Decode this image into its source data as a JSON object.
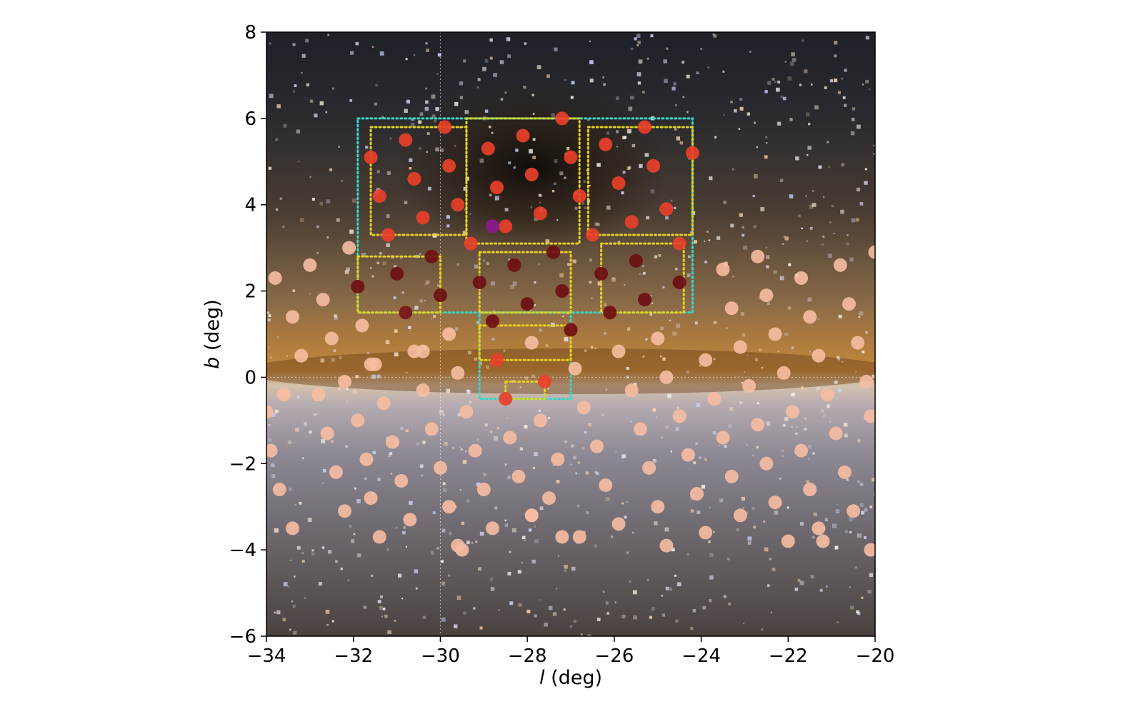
{
  "chart_data": {
    "type": "scatter",
    "xlabel": {
      "var": "l",
      "unit": " (deg)"
    },
    "ylabel": {
      "var": "b",
      "unit": " (deg)"
    },
    "xlim": [
      -34,
      -20
    ],
    "ylim": [
      -6,
      8
    ],
    "xticks": [
      -34,
      -32,
      -30,
      -28,
      -26,
      -24,
      -22,
      -20
    ],
    "yticks": [
      -6,
      -4,
      -2,
      0,
      2,
      4,
      6,
      8
    ],
    "xtick_labels": [
      "−34",
      "−32",
      "−30",
      "−28",
      "−26",
      "−24",
      "−22",
      "−20"
    ],
    "ytick_labels": [
      "−6",
      "−4",
      "−2",
      "0",
      "2",
      "4",
      "6",
      "8"
    ],
    "background": "Milky Way optical image, dark dust lane across b ≈ 0 with bright orange band, dark nebula near l ≈ -28, b ≈ 4.5",
    "colors": {
      "faint_points": "#f7bca2",
      "red_points": "#e8402a",
      "dark_points": "#6e0f12",
      "purple_point": "#8a1a8f",
      "cyan_regions": "#39d6c8",
      "yellow_regions": "#e6d21c",
      "reference_lines": "#ffffff"
    },
    "reference_lines": {
      "x": -30,
      "y": 0
    },
    "series": [
      {
        "color": "#f7bca2",
        "points": [
          [
            -33.8,
            2.3
          ],
          [
            -33.4,
            1.4
          ],
          [
            -33.2,
            0.5
          ],
          [
            -32.8,
            -0.4
          ],
          [
            -32.6,
            -1.3
          ],
          [
            -32.4,
            -2.2
          ],
          [
            -32.2,
            -3.1
          ],
          [
            -33.0,
            2.6
          ],
          [
            -32.7,
            1.8
          ],
          [
            -32.5,
            0.9
          ],
          [
            -32.2,
            -0.1
          ],
          [
            -31.9,
            -1.0
          ],
          [
            -31.7,
            -1.9
          ],
          [
            -31.6,
            -2.8
          ],
          [
            -31.4,
            -3.7
          ],
          [
            -32.1,
            3.0
          ],
          [
            -31.8,
            1.2
          ],
          [
            -31.5,
            0.3
          ],
          [
            -31.3,
            -0.6
          ],
          [
            -31.1,
            -1.5
          ],
          [
            -30.9,
            -2.4
          ],
          [
            -30.7,
            -3.3
          ],
          [
            -30.8,
            1.5
          ],
          [
            -30.6,
            0.6
          ],
          [
            -30.4,
            -0.3
          ],
          [
            -30.2,
            -1.2
          ],
          [
            -30.0,
            -2.1
          ],
          [
            -29.8,
            -3.0
          ],
          [
            -29.6,
            -3.9
          ],
          [
            -29.8,
            1.0
          ],
          [
            -29.6,
            0.1
          ],
          [
            -29.4,
            -0.8
          ],
          [
            -29.2,
            -1.7
          ],
          [
            -29.0,
            -2.6
          ],
          [
            -28.8,
            -3.5
          ],
          [
            -28.2,
            -2.3
          ],
          [
            -28.4,
            -1.4
          ],
          [
            -27.9,
            0.8
          ],
          [
            -27.7,
            -1.0
          ],
          [
            -27.9,
            -3.2
          ],
          [
            -27.5,
            -2.8
          ],
          [
            -27.3,
            -1.9
          ],
          [
            -27.2,
            -3.7
          ],
          [
            -26.9,
            0.2
          ],
          [
            -26.7,
            -0.7
          ],
          [
            -26.4,
            -1.6
          ],
          [
            -26.2,
            -2.5
          ],
          [
            -25.9,
            -3.4
          ],
          [
            -25.9,
            0.6
          ],
          [
            -25.6,
            -0.3
          ],
          [
            -25.4,
            -1.2
          ],
          [
            -25.2,
            -2.1
          ],
          [
            -25.0,
            -3.0
          ],
          [
            -24.8,
            -3.9
          ],
          [
            -25.0,
            0.9
          ],
          [
            -24.8,
            0.0
          ],
          [
            -24.5,
            -0.9
          ],
          [
            -24.3,
            -1.8
          ],
          [
            -24.1,
            -2.7
          ],
          [
            -23.9,
            -3.6
          ],
          [
            -23.9,
            0.4
          ],
          [
            -23.7,
            -0.5
          ],
          [
            -23.5,
            -1.4
          ],
          [
            -23.3,
            -2.3
          ],
          [
            -23.1,
            -3.2
          ],
          [
            -23.5,
            2.5
          ],
          [
            -23.3,
            1.6
          ],
          [
            -23.1,
            0.7
          ],
          [
            -22.9,
            -0.2
          ],
          [
            -22.7,
            -1.1
          ],
          [
            -22.5,
            -2.0
          ],
          [
            -22.3,
            -2.9
          ],
          [
            -22.7,
            2.8
          ],
          [
            -22.5,
            1.9
          ],
          [
            -22.3,
            1.0
          ],
          [
            -22.1,
            0.1
          ],
          [
            -21.9,
            -0.8
          ],
          [
            -21.7,
            -1.7
          ],
          [
            -21.5,
            -2.6
          ],
          [
            -21.3,
            -3.5
          ],
          [
            -21.7,
            2.3
          ],
          [
            -21.5,
            1.4
          ],
          [
            -21.3,
            0.5
          ],
          [
            -21.1,
            -0.4
          ],
          [
            -20.9,
            -1.3
          ],
          [
            -20.7,
            -2.2
          ],
          [
            -20.5,
            -3.1
          ],
          [
            -20.8,
            2.6
          ],
          [
            -20.6,
            1.7
          ],
          [
            -20.4,
            0.8
          ],
          [
            -20.2,
            -0.1
          ],
          [
            -20.1,
            -0.9
          ],
          [
            -20.1,
            -4.0
          ],
          [
            -20.0,
            2.9
          ],
          [
            -21.2,
            -3.8
          ],
          [
            -22.0,
            -3.8
          ],
          [
            -26.8,
            -3.7
          ],
          [
            -29.5,
            -4.0
          ],
          [
            -33.7,
            -2.6
          ],
          [
            -33.4,
            -3.5
          ],
          [
            -34.0,
            -0.8
          ],
          [
            -33.9,
            -1.7
          ],
          [
            -33.6,
            -0.4
          ],
          [
            -31.6,
            0.3
          ],
          [
            -30.4,
            0.6
          ],
          [
            -27.9,
            -3.2
          ]
        ]
      },
      {
        "color": "#e8402a",
        "points": [
          [
            -31.6,
            5.1
          ],
          [
            -30.8,
            5.5
          ],
          [
            -29.9,
            5.8
          ],
          [
            -31.4,
            4.2
          ],
          [
            -30.6,
            4.6
          ],
          [
            -29.8,
            4.9
          ],
          [
            -30.4,
            3.7
          ],
          [
            -29.6,
            4.0
          ],
          [
            -31.2,
            3.3
          ],
          [
            -29.3,
            3.1
          ],
          [
            -28.9,
            5.3
          ],
          [
            -28.1,
            5.6
          ],
          [
            -27.2,
            6.0
          ],
          [
            -28.7,
            4.4
          ],
          [
            -27.9,
            4.7
          ],
          [
            -27.0,
            5.1
          ],
          [
            -28.5,
            3.5
          ],
          [
            -27.7,
            3.8
          ],
          [
            -26.8,
            4.2
          ],
          [
            -26.5,
            3.3
          ],
          [
            -26.2,
            5.4
          ],
          [
            -25.3,
            5.8
          ],
          [
            -24.2,
            5.2
          ],
          [
            -25.9,
            4.5
          ],
          [
            -25.1,
            4.9
          ],
          [
            -24.8,
            3.9
          ],
          [
            -25.6,
            3.6
          ],
          [
            -24.5,
            3.1
          ],
          [
            -28.7,
            0.4
          ],
          [
            -27.6,
            -0.1
          ],
          [
            -28.5,
            -0.5
          ]
        ]
      },
      {
        "color": "#6e0f12",
        "points": [
          [
            -31.9,
            2.1
          ],
          [
            -31.0,
            2.4
          ],
          [
            -30.2,
            2.8
          ],
          [
            -30.0,
            1.9
          ],
          [
            -30.8,
            1.5
          ],
          [
            -29.1,
            2.2
          ],
          [
            -28.3,
            2.6
          ],
          [
            -27.4,
            2.9
          ],
          [
            -28.8,
            1.3
          ],
          [
            -28.0,
            1.7
          ],
          [
            -27.2,
            2.0
          ],
          [
            -27.0,
            1.1
          ],
          [
            -26.3,
            2.4
          ],
          [
            -25.5,
            2.7
          ],
          [
            -24.5,
            2.2
          ],
          [
            -25.3,
            1.8
          ],
          [
            -26.1,
            1.5
          ]
        ]
      },
      {
        "color": "#8a1a8f",
        "points": [
          [
            -28.8,
            3.5
          ]
        ]
      }
    ],
    "regions": {
      "cyan": [
        {
          "l": [
            -31.9,
            -24.2
          ],
          "b": [
            1.5,
            6.0
          ]
        },
        {
          "l": [
            -29.1,
            -27.0
          ],
          "b": [
            -0.5,
            1.5
          ]
        }
      ],
      "yellow": [
        {
          "l": [
            -31.6,
            -29.4
          ],
          "b": [
            3.3,
            5.8
          ]
        },
        {
          "l": [
            -29.4,
            -26.8
          ],
          "b": [
            3.1,
            6.0
          ]
        },
        {
          "l": [
            -26.6,
            -24.2
          ],
          "b": [
            3.3,
            5.8
          ]
        },
        {
          "l": [
            -31.9,
            -30.0
          ],
          "b": [
            1.5,
            2.8
          ]
        },
        {
          "l": [
            -29.1,
            -27.0
          ],
          "b": [
            1.5,
            2.9
          ]
        },
        {
          "l": [
            -26.3,
            -24.4
          ],
          "b": [
            1.5,
            3.1
          ]
        },
        {
          "l": [
            -29.1,
            -27.0
          ],
          "b": [
            0.4,
            1.2
          ]
        },
        {
          "l": [
            -28.5,
            -27.6
          ],
          "b": [
            -0.5,
            -0.1
          ]
        }
      ]
    }
  }
}
